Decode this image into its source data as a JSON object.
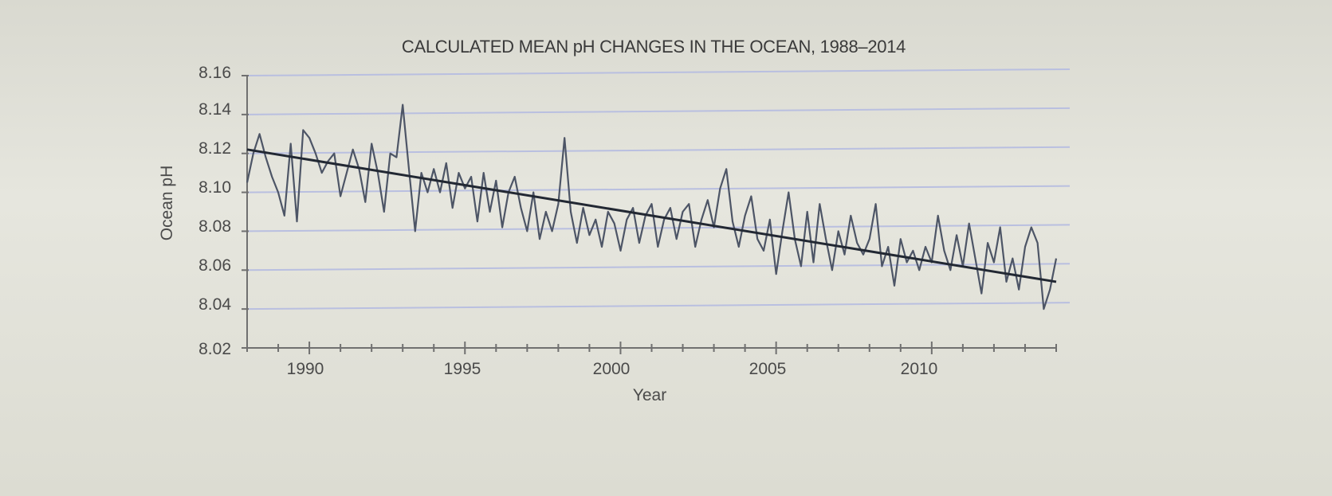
{
  "chart_data": {
    "type": "line",
    "title": "CALCULATED MEAN pH CHANGES IN THE OCEAN, 1988–2014",
    "xlabel": "Year",
    "ylabel": "Ocean pH",
    "xlim": [
      1988,
      2014
    ],
    "ylim": [
      8.02,
      8.16
    ],
    "x_ticks": [
      1990,
      1995,
      2000,
      2005,
      2010
    ],
    "y_ticks": [
      8.02,
      8.04,
      8.06,
      8.08,
      8.1,
      8.12,
      8.14,
      8.16
    ],
    "y_tick_labels": [
      "8.02",
      "8.04",
      "8.06",
      "8.08",
      "8.10",
      "8.12",
      "8.14",
      "8.16"
    ],
    "x_tick_labels": [
      "1990",
      "1995",
      "2000",
      "2005",
      "2010"
    ],
    "grid": true,
    "series": [
      {
        "values": [
          [
            1988.0,
            8.105
          ],
          [
            1988.2,
            8.12
          ],
          [
            1988.4,
            8.13
          ],
          [
            1988.6,
            8.118
          ],
          [
            1988.8,
            8.108
          ],
          [
            1989.0,
            8.1
          ],
          [
            1989.2,
            8.088
          ],
          [
            1989.4,
            8.125
          ],
          [
            1989.6,
            8.085
          ],
          [
            1989.8,
            8.132
          ],
          [
            1990.0,
            8.128
          ],
          [
            1990.2,
            8.12
          ],
          [
            1990.4,
            8.11
          ],
          [
            1990.6,
            8.116
          ],
          [
            1990.8,
            8.12
          ],
          [
            1991.0,
            8.098
          ],
          [
            1991.2,
            8.11
          ],
          [
            1991.4,
            8.122
          ],
          [
            1991.6,
            8.112
          ],
          [
            1991.8,
            8.095
          ],
          [
            1992.0,
            8.125
          ],
          [
            1992.2,
            8.11
          ],
          [
            1992.4,
            8.09
          ],
          [
            1992.6,
            8.12
          ],
          [
            1992.8,
            8.118
          ],
          [
            1993.0,
            8.145
          ],
          [
            1993.2,
            8.112
          ],
          [
            1993.4,
            8.08
          ],
          [
            1993.6,
            8.11
          ],
          [
            1993.8,
            8.1
          ],
          [
            1994.0,
            8.112
          ],
          [
            1994.2,
            8.1
          ],
          [
            1994.4,
            8.115
          ],
          [
            1994.6,
            8.092
          ],
          [
            1994.8,
            8.11
          ],
          [
            1995.0,
            8.102
          ],
          [
            1995.2,
            8.108
          ],
          [
            1995.4,
            8.085
          ],
          [
            1995.6,
            8.11
          ],
          [
            1995.8,
            8.09
          ],
          [
            1996.0,
            8.106
          ],
          [
            1996.2,
            8.082
          ],
          [
            1996.4,
            8.1
          ],
          [
            1996.6,
            8.108
          ],
          [
            1996.8,
            8.092
          ],
          [
            1997.0,
            8.08
          ],
          [
            1997.2,
            8.1
          ],
          [
            1997.4,
            8.076
          ],
          [
            1997.6,
            8.09
          ],
          [
            1997.8,
            8.08
          ],
          [
            1998.0,
            8.094
          ],
          [
            1998.2,
            8.128
          ],
          [
            1998.4,
            8.09
          ],
          [
            1998.6,
            8.074
          ],
          [
            1998.8,
            8.092
          ],
          [
            1999.0,
            8.078
          ],
          [
            1999.2,
            8.086
          ],
          [
            1999.4,
            8.072
          ],
          [
            1999.6,
            8.09
          ],
          [
            1999.8,
            8.084
          ],
          [
            2000.0,
            8.07
          ],
          [
            2000.2,
            8.086
          ],
          [
            2000.4,
            8.092
          ],
          [
            2000.6,
            8.074
          ],
          [
            2000.8,
            8.088
          ],
          [
            2001.0,
            8.094
          ],
          [
            2001.2,
            8.072
          ],
          [
            2001.4,
            8.086
          ],
          [
            2001.6,
            8.092
          ],
          [
            2001.8,
            8.076
          ],
          [
            2002.0,
            8.09
          ],
          [
            2002.2,
            8.094
          ],
          [
            2002.4,
            8.072
          ],
          [
            2002.6,
            8.086
          ],
          [
            2002.8,
            8.096
          ],
          [
            2003.0,
            8.082
          ],
          [
            2003.2,
            8.102
          ],
          [
            2003.4,
            8.112
          ],
          [
            2003.6,
            8.085
          ],
          [
            2003.8,
            8.072
          ],
          [
            2004.0,
            8.088
          ],
          [
            2004.2,
            8.098
          ],
          [
            2004.4,
            8.076
          ],
          [
            2004.6,
            8.07
          ],
          [
            2004.8,
            8.086
          ],
          [
            2005.0,
            8.058
          ],
          [
            2005.2,
            8.08
          ],
          [
            2005.4,
            8.1
          ],
          [
            2005.6,
            8.076
          ],
          [
            2005.8,
            8.062
          ],
          [
            2006.0,
            8.09
          ],
          [
            2006.2,
            8.064
          ],
          [
            2006.4,
            8.094
          ],
          [
            2006.6,
            8.076
          ],
          [
            2006.8,
            8.06
          ],
          [
            2007.0,
            8.08
          ],
          [
            2007.2,
            8.068
          ],
          [
            2007.4,
            8.088
          ],
          [
            2007.6,
            8.074
          ],
          [
            2007.8,
            8.068
          ],
          [
            2008.0,
            8.076
          ],
          [
            2008.2,
            8.094
          ],
          [
            2008.4,
            8.062
          ],
          [
            2008.6,
            8.072
          ],
          [
            2008.8,
            8.052
          ],
          [
            2009.0,
            8.076
          ],
          [
            2009.2,
            8.064
          ],
          [
            2009.4,
            8.07
          ],
          [
            2009.6,
            8.06
          ],
          [
            2009.8,
            8.072
          ],
          [
            2010.0,
            8.064
          ],
          [
            2010.2,
            8.088
          ],
          [
            2010.4,
            8.07
          ],
          [
            2010.6,
            8.06
          ],
          [
            2010.8,
            8.078
          ],
          [
            2011.0,
            8.062
          ],
          [
            2011.2,
            8.084
          ],
          [
            2011.4,
            8.066
          ],
          [
            2011.6,
            8.048
          ],
          [
            2011.8,
            8.074
          ],
          [
            2012.0,
            8.064
          ],
          [
            2012.2,
            8.082
          ],
          [
            2012.4,
            8.054
          ],
          [
            2012.6,
            8.066
          ],
          [
            2012.8,
            8.05
          ],
          [
            2013.0,
            8.072
          ],
          [
            2013.2,
            8.082
          ],
          [
            2013.4,
            8.074
          ],
          [
            2013.6,
            8.04
          ],
          [
            2013.8,
            8.05
          ],
          [
            2014.0,
            8.066
          ]
        ]
      },
      {
        "values": [
          [
            1988,
            8.122
          ],
          [
            2014,
            8.054
          ]
        ]
      }
    ]
  }
}
